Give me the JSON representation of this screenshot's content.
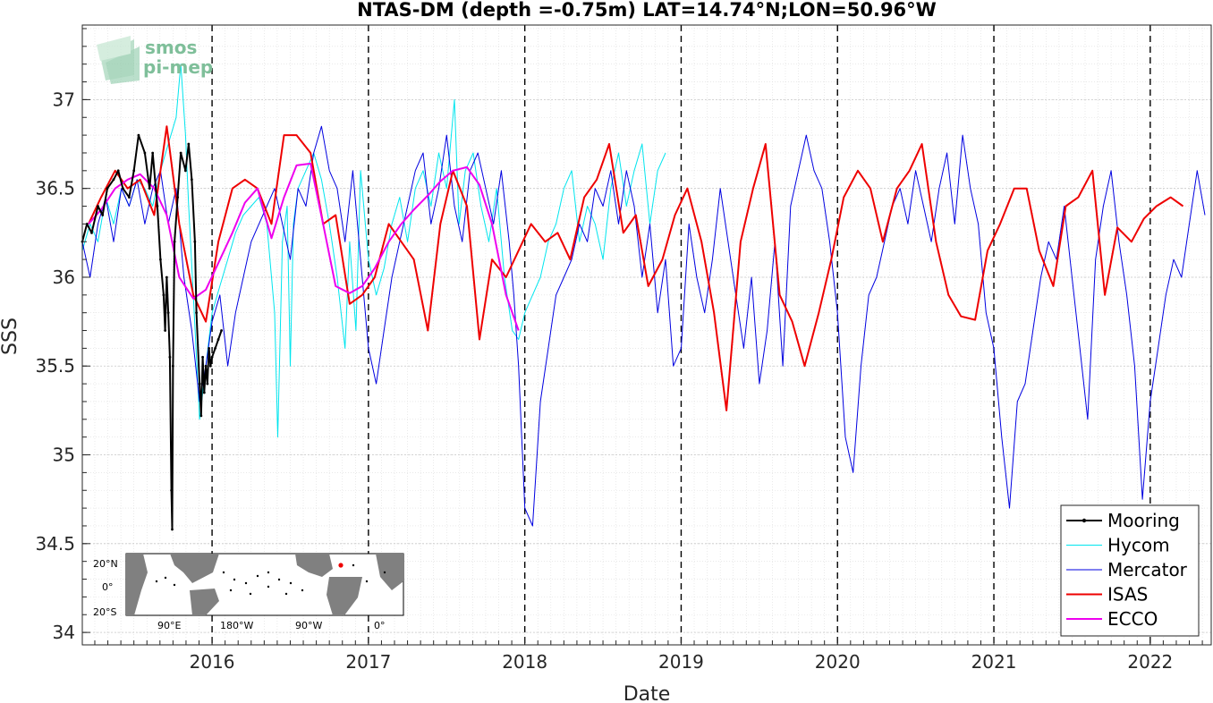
{
  "chart_data": {
    "type": "line",
    "title": "NTAS-DM (depth =-0.75m) LAT=14.74°N;LON=50.96°W",
    "xlabel": "Date",
    "ylabel": "SSS",
    "xlim": [
      2015.17,
      2022.39
    ],
    "ylim": [
      33.93,
      37.42
    ],
    "xticks": [
      2016,
      2017,
      2018,
      2019,
      2020,
      2021,
      2022
    ],
    "xtick_labels": [
      "2016",
      "2017",
      "2018",
      "2019",
      "2020",
      "2021",
      "2022"
    ],
    "yticks": [
      34,
      34.5,
      35,
      35.5,
      36,
      36.5,
      37
    ],
    "ytick_labels": [
      "34",
      "34.5",
      "35",
      "35.5",
      "36",
      "36.5",
      "37"
    ],
    "grid": true,
    "year_dividers": [
      2016,
      2017,
      2018,
      2019,
      2020,
      2021,
      2022
    ],
    "legend_position": "bottom-right",
    "series": [
      {
        "name": "Mooring",
        "color": "#000000",
        "x": [
          2015.17,
          2015.2,
          2015.23,
          2015.27,
          2015.3,
          2015.33,
          2015.37,
          2015.4,
          2015.43,
          2015.47,
          2015.5,
          2015.53,
          2015.57,
          2015.6,
          2015.62,
          2015.65,
          2015.67,
          2015.69,
          2015.7,
          2015.71,
          2015.72,
          2015.73,
          2015.74,
          2015.745,
          2015.75,
          2015.76,
          2015.78,
          2015.8,
          2015.83,
          2015.85,
          2015.87,
          2015.89,
          2015.9,
          2015.92,
          2015.93,
          2015.94,
          2015.95,
          2015.96,
          2015.97,
          2015.98,
          2015.99,
          2016.0,
          2016.02,
          2016.04,
          2016.06
        ],
        "y": [
          36.2,
          36.3,
          36.25,
          36.4,
          36.35,
          36.5,
          36.55,
          36.6,
          36.5,
          36.45,
          36.6,
          36.8,
          36.7,
          36.5,
          36.7,
          36.4,
          36.1,
          35.9,
          35.7,
          36.0,
          35.8,
          35.55,
          34.8,
          34.58,
          35.5,
          36.2,
          36.45,
          36.7,
          36.6,
          36.75,
          36.55,
          36.2,
          35.8,
          35.4,
          35.22,
          35.55,
          35.35,
          35.5,
          35.4,
          35.6,
          35.5,
          35.55,
          35.6,
          35.65,
          35.7
        ]
      },
      {
        "name": "Hycom",
        "color": "#00e5ee",
        "x": [
          2015.17,
          2015.22,
          2015.27,
          2015.32,
          2015.37,
          2015.42,
          2015.47,
          2015.52,
          2015.57,
          2015.62,
          2015.67,
          2015.72,
          2015.77,
          2015.8,
          2015.83,
          2015.85,
          2015.88,
          2015.92,
          2015.96,
          2016.0,
          2016.05,
          2016.1,
          2016.15,
          2016.2,
          2016.25,
          2016.3,
          2016.35,
          2016.4,
          2016.42,
          2016.45,
          2016.48,
          2016.5,
          2016.52,
          2016.55,
          2016.6,
          2016.65,
          2016.7,
          2016.75,
          2016.8,
          2016.85,
          2016.88,
          2016.92,
          2016.95,
          2017.0,
          2017.05,
          2017.1,
          2017.15,
          2017.2,
          2017.25,
          2017.3,
          2017.35,
          2017.4,
          2017.45,
          2017.5,
          2017.55,
          2017.58,
          2017.62,
          2017.67,
          2017.72,
          2017.77,
          2017.82,
          2017.87,
          2017.92,
          2017.96,
          2018.0,
          2018.05,
          2018.1,
          2018.15,
          2018.2,
          2018.25,
          2018.3,
          2018.35,
          2018.4,
          2018.45,
          2018.5,
          2018.55,
          2018.6,
          2018.65,
          2018.7,
          2018.75,
          2018.8,
          2018.85,
          2018.9
        ],
        "y": [
          36.15,
          36.3,
          36.2,
          36.45,
          36.3,
          36.5,
          36.4,
          36.55,
          36.5,
          36.4,
          36.6,
          36.75,
          36.9,
          37.2,
          36.8,
          36.4,
          35.9,
          35.2,
          35.5,
          35.8,
          35.95,
          36.1,
          36.25,
          36.35,
          36.4,
          36.45,
          36.3,
          35.8,
          35.1,
          36.2,
          36.4,
          35.5,
          36.3,
          36.5,
          36.6,
          36.7,
          36.55,
          36.3,
          36.0,
          35.6,
          36.2,
          35.7,
          36.6,
          36.1,
          35.9,
          36.05,
          36.3,
          36.45,
          36.2,
          36.5,
          36.6,
          36.4,
          36.7,
          36.5,
          37.0,
          36.3,
          36.6,
          36.7,
          36.4,
          36.2,
          36.5,
          36.0,
          35.7,
          35.65,
          35.8,
          35.9,
          36.0,
          36.2,
          36.3,
          36.5,
          36.6,
          36.2,
          36.4,
          36.3,
          36.1,
          36.5,
          36.7,
          36.4,
          36.6,
          36.75,
          36.3,
          36.6,
          36.7
        ]
      },
      {
        "name": "Mercator",
        "color": "#0000e0",
        "x": [
          2015.17,
          2015.22,
          2015.27,
          2015.32,
          2015.37,
          2015.42,
          2015.47,
          2015.52,
          2015.57,
          2015.62,
          2015.67,
          2015.72,
          2015.77,
          2015.82,
          2015.87,
          2015.92,
          2015.96,
          2016.0,
          2016.05,
          2016.1,
          2016.15,
          2016.2,
          2016.25,
          2016.3,
          2016.35,
          2016.4,
          2016.45,
          2016.5,
          2016.55,
          2016.6,
          2016.65,
          2016.7,
          2016.75,
          2016.8,
          2016.85,
          2016.9,
          2016.95,
          2017.0,
          2017.05,
          2017.1,
          2017.15,
          2017.2,
          2017.25,
          2017.3,
          2017.35,
          2017.4,
          2017.45,
          2017.5,
          2017.55,
          2017.6,
          2017.65,
          2017.7,
          2017.75,
          2017.8,
          2017.85,
          2017.9,
          2017.93,
          2017.96,
          2018.0,
          2018.05,
          2018.1,
          2018.15,
          2018.2,
          2018.25,
          2018.3,
          2018.35,
          2018.4,
          2018.45,
          2018.5,
          2018.55,
          2018.6,
          2018.65,
          2018.7,
          2018.75,
          2018.8,
          2018.85,
          2018.9,
          2018.95,
          2019.0,
          2019.05,
          2019.1,
          2019.15,
          2019.2,
          2019.25,
          2019.3,
          2019.35,
          2019.4,
          2019.45,
          2019.5,
          2019.55,
          2019.6,
          2019.65,
          2019.7,
          2019.75,
          2019.8,
          2019.85,
          2019.9,
          2019.95,
          2020.0,
          2020.05,
          2020.1,
          2020.15,
          2020.2,
          2020.25,
          2020.3,
          2020.35,
          2020.4,
          2020.45,
          2020.5,
          2020.55,
          2020.6,
          2020.65,
          2020.7,
          2020.75,
          2020.8,
          2020.85,
          2020.9,
          2020.95,
          2021.0,
          2021.05,
          2021.1,
          2021.15,
          2021.2,
          2021.25,
          2021.3,
          2021.35,
          2021.4,
          2021.45,
          2021.5,
          2021.55,
          2021.6,
          2021.65,
          2021.7,
          2021.75,
          2021.8,
          2021.85,
          2021.9,
          2021.95,
          2022.0,
          2022.05,
          2022.1,
          2022.15,
          2022.2,
          2022.25,
          2022.3,
          2022.35
        ],
        "y": [
          36.2,
          36.0,
          36.3,
          36.45,
          36.2,
          36.5,
          36.4,
          36.55,
          36.3,
          36.5,
          36.6,
          36.3,
          36.5,
          36.0,
          35.7,
          35.3,
          35.5,
          35.75,
          35.9,
          35.5,
          35.8,
          36.0,
          36.2,
          36.3,
          36.4,
          36.5,
          36.3,
          36.1,
          36.5,
          36.4,
          36.7,
          36.85,
          36.6,
          36.5,
          36.2,
          36.6,
          36.1,
          35.6,
          35.4,
          35.7,
          36.0,
          36.2,
          36.4,
          36.6,
          36.7,
          36.3,
          36.5,
          36.8,
          36.4,
          36.2,
          36.6,
          36.7,
          36.5,
          36.3,
          36.6,
          36.2,
          35.9,
          35.5,
          34.7,
          34.6,
          35.3,
          35.6,
          35.9,
          36.0,
          36.1,
          36.3,
          36.2,
          36.5,
          36.4,
          36.6,
          36.3,
          36.6,
          36.4,
          36.0,
          36.3,
          35.8,
          36.1,
          35.5,
          35.6,
          36.3,
          36.0,
          35.8,
          36.1,
          36.5,
          36.2,
          35.9,
          35.6,
          36.0,
          35.4,
          35.7,
          36.2,
          35.5,
          36.4,
          36.6,
          36.8,
          36.6,
          36.5,
          36.2,
          35.8,
          35.1,
          34.9,
          35.5,
          35.9,
          36.0,
          36.2,
          36.4,
          36.5,
          36.3,
          36.6,
          36.4,
          36.2,
          36.5,
          36.7,
          36.3,
          36.8,
          36.5,
          36.3,
          35.8,
          35.6,
          35.1,
          34.7,
          35.3,
          35.4,
          35.7,
          36.0,
          36.2,
          36.1,
          36.4,
          36.0,
          35.6,
          35.2,
          36.1,
          36.4,
          36.6,
          36.2,
          35.9,
          35.5,
          34.75,
          35.3,
          35.6,
          35.9,
          36.1,
          36.0,
          36.3,
          36.6,
          36.35
        ]
      },
      {
        "name": "ISAS",
        "color": "#ee0000",
        "x": [
          2015.21,
          2015.29,
          2015.38,
          2015.46,
          2015.54,
          2015.63,
          2015.71,
          2015.79,
          2015.88,
          2015.96,
          2016.04,
          2016.13,
          2016.21,
          2016.29,
          2016.38,
          2016.46,
          2016.54,
          2016.63,
          2016.71,
          2016.79,
          2016.88,
          2016.96,
          2017.04,
          2017.13,
          2017.21,
          2017.29,
          2017.38,
          2017.46,
          2017.54,
          2017.63,
          2017.71,
          2017.79,
          2017.88,
          2017.96,
          2018.04,
          2018.13,
          2018.21,
          2018.29,
          2018.38,
          2018.46,
          2018.54,
          2018.63,
          2018.71,
          2018.79,
          2018.88,
          2018.96,
          2019.04,
          2019.13,
          2019.21,
          2019.29,
          2019.38,
          2019.46,
          2019.54,
          2019.63,
          2019.71,
          2019.79,
          2019.88,
          2019.96,
          2020.04,
          2020.13,
          2020.21,
          2020.29,
          2020.38,
          2020.46,
          2020.54,
          2020.63,
          2020.71,
          2020.79,
          2020.88,
          2020.96,
          2021.04,
          2021.13,
          2021.21,
          2021.29,
          2021.38,
          2021.46,
          2021.54,
          2021.63,
          2021.71,
          2021.79,
          2021.88,
          2021.96,
          2022.04,
          2022.13,
          2022.21
        ],
        "y": [
          36.3,
          36.45,
          36.6,
          36.5,
          36.55,
          36.35,
          36.85,
          36.3,
          35.9,
          35.75,
          36.2,
          36.5,
          36.55,
          36.5,
          36.3,
          36.8,
          36.8,
          36.7,
          36.3,
          36.35,
          35.85,
          35.9,
          36.0,
          36.3,
          36.2,
          36.1,
          35.7,
          36.3,
          36.6,
          36.4,
          35.65,
          36.1,
          36.0,
          36.15,
          36.3,
          36.2,
          36.25,
          36.1,
          36.45,
          36.55,
          36.75,
          36.25,
          36.35,
          35.95,
          36.1,
          36.35,
          36.5,
          36.2,
          35.8,
          35.25,
          36.2,
          36.5,
          36.75,
          35.9,
          35.75,
          35.5,
          35.8,
          36.1,
          36.45,
          36.6,
          36.5,
          36.2,
          36.5,
          36.6,
          36.75,
          36.2,
          35.9,
          35.78,
          35.76,
          36.15,
          36.3,
          36.5,
          36.5,
          36.15,
          35.95,
          36.4,
          36.45,
          36.6,
          35.9,
          36.28,
          36.2,
          36.33,
          36.4,
          36.45,
          36.4
        ],
        "x_note": ""
      },
      {
        "name": "ECCO",
        "color": "#ee00ee",
        "x": [
          2015.21,
          2015.29,
          2015.38,
          2015.46,
          2015.54,
          2015.63,
          2015.71,
          2015.79,
          2015.88,
          2015.96,
          2016.04,
          2016.13,
          2016.21,
          2016.29,
          2016.38,
          2016.46,
          2016.54,
          2016.63,
          2016.71,
          2016.79,
          2016.88,
          2016.96,
          2017.04,
          2017.13,
          2017.21,
          2017.29,
          2017.38,
          2017.46,
          2017.54,
          2017.63,
          2017.71,
          2017.79,
          2017.88,
          2017.96
        ],
        "y": [
          36.3,
          36.38,
          36.5,
          36.55,
          36.58,
          36.5,
          36.35,
          36.0,
          35.88,
          35.93,
          36.08,
          36.25,
          36.42,
          36.5,
          36.22,
          36.45,
          36.63,
          36.64,
          36.3,
          35.95,
          35.91,
          35.95,
          36.05,
          36.2,
          36.3,
          36.38,
          36.46,
          36.54,
          36.6,
          36.62,
          36.52,
          36.3,
          35.9,
          35.7
        ]
      }
    ],
    "inset_map": {
      "lat_labels": [
        "20°N",
        "0°",
        "20°S"
      ],
      "lon_labels": [
        "90°E",
        "180°W",
        "90°W",
        "0°"
      ]
    }
  },
  "logo": {
    "line1": "smos",
    "line2": "pi-mep"
  }
}
